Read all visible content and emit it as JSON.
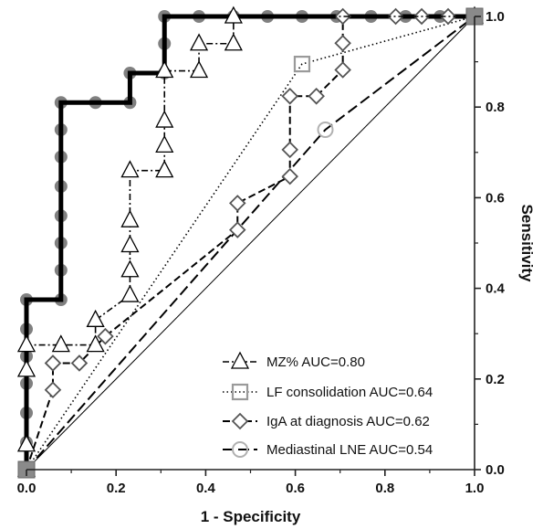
{
  "chart_data": {
    "type": "line",
    "title": "",
    "xlabel": "1 - Specificity",
    "ylabel": "Sensitivity",
    "xlim": [
      0.0,
      1.0
    ],
    "ylim": [
      0.0,
      1.0
    ],
    "xticks": [
      "0.0",
      "0.2",
      "0.4",
      "0.6",
      "0.8",
      "1.0"
    ],
    "yticks": [
      "0.0",
      "0.2",
      "0.4",
      "0.6",
      "0.8",
      "1.0"
    ],
    "y_axis_position": "right",
    "grid": false,
    "legend_position": "bottom-right",
    "reference_line": [
      [
        0,
        0
      ],
      [
        1,
        1
      ]
    ],
    "series": [
      {
        "name": "",
        "style": "thick-solid-black",
        "marker": "grey-circle",
        "color": "#000000",
        "marker_color": "#808080",
        "points": [
          [
            0,
            0
          ],
          [
            0,
            0.06
          ],
          [
            0,
            0.125
          ],
          [
            0,
            0.19
          ],
          [
            0,
            0.25
          ],
          [
            0,
            0.31
          ],
          [
            0,
            0.375
          ],
          [
            0.077,
            0.375
          ],
          [
            0.077,
            0.44
          ],
          [
            0.077,
            0.5
          ],
          [
            0.077,
            0.56
          ],
          [
            0.077,
            0.625
          ],
          [
            0.077,
            0.69
          ],
          [
            0.077,
            0.75
          ],
          [
            0.077,
            0.81
          ],
          [
            0.154,
            0.81
          ],
          [
            0.231,
            0.81
          ],
          [
            0.231,
            0.875
          ],
          [
            0.308,
            0.875
          ],
          [
            0.308,
            0.94
          ],
          [
            0.308,
            1.0
          ],
          [
            0.385,
            1.0
          ],
          [
            0.462,
            1.0
          ],
          [
            0.538,
            1.0
          ],
          [
            0.615,
            1.0
          ],
          [
            0.692,
            1.0
          ],
          [
            0.769,
            1.0
          ],
          [
            0.846,
            1.0
          ],
          [
            0.923,
            1.0
          ],
          [
            1.0,
            1.0
          ]
        ]
      },
      {
        "name": "MZ% AUC=0.80",
        "style": "dash-dot",
        "marker": "triangle",
        "color": "#000000",
        "points": [
          [
            0,
            0
          ],
          [
            0,
            0.055
          ],
          [
            0,
            0.22
          ],
          [
            0,
            0.275
          ],
          [
            0.077,
            0.275
          ],
          [
            0.154,
            0.275
          ],
          [
            0.154,
            0.33
          ],
          [
            0.231,
            0.385
          ],
          [
            0.231,
            0.44
          ],
          [
            0.231,
            0.495
          ],
          [
            0.231,
            0.55
          ],
          [
            0.231,
            0.66
          ],
          [
            0.308,
            0.66
          ],
          [
            0.308,
            0.715
          ],
          [
            0.308,
            0.77
          ],
          [
            0.308,
            0.88
          ],
          [
            0.385,
            0.88
          ],
          [
            0.385,
            0.94
          ],
          [
            0.462,
            0.94
          ],
          [
            0.462,
            1.0
          ],
          [
            1.0,
            1.0
          ]
        ]
      },
      {
        "name": "LF consolidation AUC=0.64",
        "style": "dotted",
        "marker": "grey-square",
        "color": "#000000",
        "marker_color": "#9a9a9a",
        "points": [
          [
            0,
            0
          ],
          [
            0.615,
            0.895
          ],
          [
            1.0,
            1.0
          ]
        ]
      },
      {
        "name": "IgA at diagnosis AUC=0.62",
        "style": "dashed",
        "marker": "diamond",
        "color": "#000000",
        "points": [
          [
            0,
            0
          ],
          [
            0.059,
            0.176
          ],
          [
            0.059,
            0.235
          ],
          [
            0.118,
            0.235
          ],
          [
            0.176,
            0.294
          ],
          [
            0.471,
            0.529
          ],
          [
            0.471,
            0.588
          ],
          [
            0.588,
            0.647
          ],
          [
            0.588,
            0.706
          ],
          [
            0.588,
            0.824
          ],
          [
            0.647,
            0.824
          ],
          [
            0.706,
            0.882
          ],
          [
            0.706,
            0.941
          ],
          [
            0.706,
            1.0
          ],
          [
            0.824,
            1.0
          ],
          [
            0.882,
            1.0
          ],
          [
            0.941,
            1.0
          ],
          [
            1.0,
            1.0
          ]
        ]
      },
      {
        "name": "Mediastinal LNE AUC=0.54",
        "style": "long-dash",
        "marker": "circle",
        "color": "#000000",
        "marker_color": "#b0b0b0",
        "points": [
          [
            0,
            0
          ],
          [
            0.667,
            0.75
          ],
          [
            1.0,
            1.0
          ]
        ]
      }
    ]
  }
}
